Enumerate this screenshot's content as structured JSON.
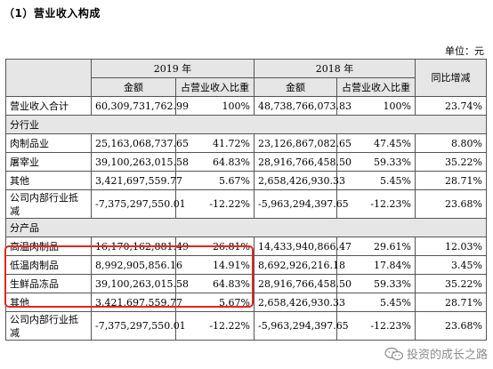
{
  "section_title": "（1）营业收入构成",
  "unit": "单位：元",
  "header": {
    "year_2019": "2019 年",
    "year_2018": "2018 年",
    "yoy": "同比增减",
    "amount": "金额",
    "ratio": "占营业收入比重"
  },
  "total": {
    "label": "营业收入合计",
    "a2019": "60,309,731,762.99",
    "r2019": "100%",
    "a2018": "48,738,766,073.83",
    "r2018": "100%",
    "yoy": "23.74%"
  },
  "by_industry": {
    "title": "分行业",
    "rows": [
      {
        "label": "肉制品业",
        "a2019": "25,163,068,737.65",
        "r2019": "41.72%",
        "a2018": "23,126,867,082.65",
        "r2018": "47.45%",
        "yoy": "8.80%"
      },
      {
        "label": "屠宰业",
        "a2019": "39,100,263,015.58",
        "r2019": "64.83%",
        "a2018": "28,916,766,458.50",
        "r2018": "59.33%",
        "yoy": "35.22%"
      },
      {
        "label": "其他",
        "a2019": "3,421,697,559.77",
        "r2019": "5.67%",
        "a2018": "2,658,426,930.33",
        "r2018": "5.45%",
        "yoy": "28.71%"
      },
      {
        "label": "公司内部行业抵减",
        "a2019": "-7,375,297,550.01",
        "r2019": "-12.22%",
        "a2018": "-5,963,294,397.65",
        "r2018": "-12.23%",
        "yoy": "23.68%"
      }
    ]
  },
  "by_product": {
    "title": "分产品",
    "rows": [
      {
        "label": "高温肉制品",
        "a2019": "16,170,162,881.49",
        "r2019": "26.81%",
        "a2018": "14,433,940,866.47",
        "r2018": "29.61%",
        "yoy": "12.03%"
      },
      {
        "label": "低温肉制品",
        "a2019": "8,992,905,856.16",
        "r2019": "14.91%",
        "a2018": "8,692,926,216.18",
        "r2018": "17.84%",
        "yoy": "3.45%"
      },
      {
        "label": "生鲜品冻品",
        "a2019": "39,100,263,015.58",
        "r2019": "64.83%",
        "a2018": "28,916,766,458.50",
        "r2018": "59.33%",
        "yoy": "35.22%"
      },
      {
        "label": "其他",
        "a2019": "3,421,697,559.77",
        "r2019": "5.67%",
        "a2018": "2,658,426,930.33",
        "r2018": "5.45%",
        "yoy": "28.71%"
      },
      {
        "label": "公司内部行业抵减",
        "a2019": "-7,375,297,550.01",
        "r2019": "-12.22%",
        "a2018": "-5,963,294,397.65",
        "r2018": "-12.23%",
        "yoy": "23.68%"
      }
    ]
  },
  "watermark": {
    "text": "投资的成长之路",
    "icon": "wechat-icon"
  },
  "colors": {
    "highlight": "#e0271d",
    "header_bg": "#e6e6e6"
  }
}
